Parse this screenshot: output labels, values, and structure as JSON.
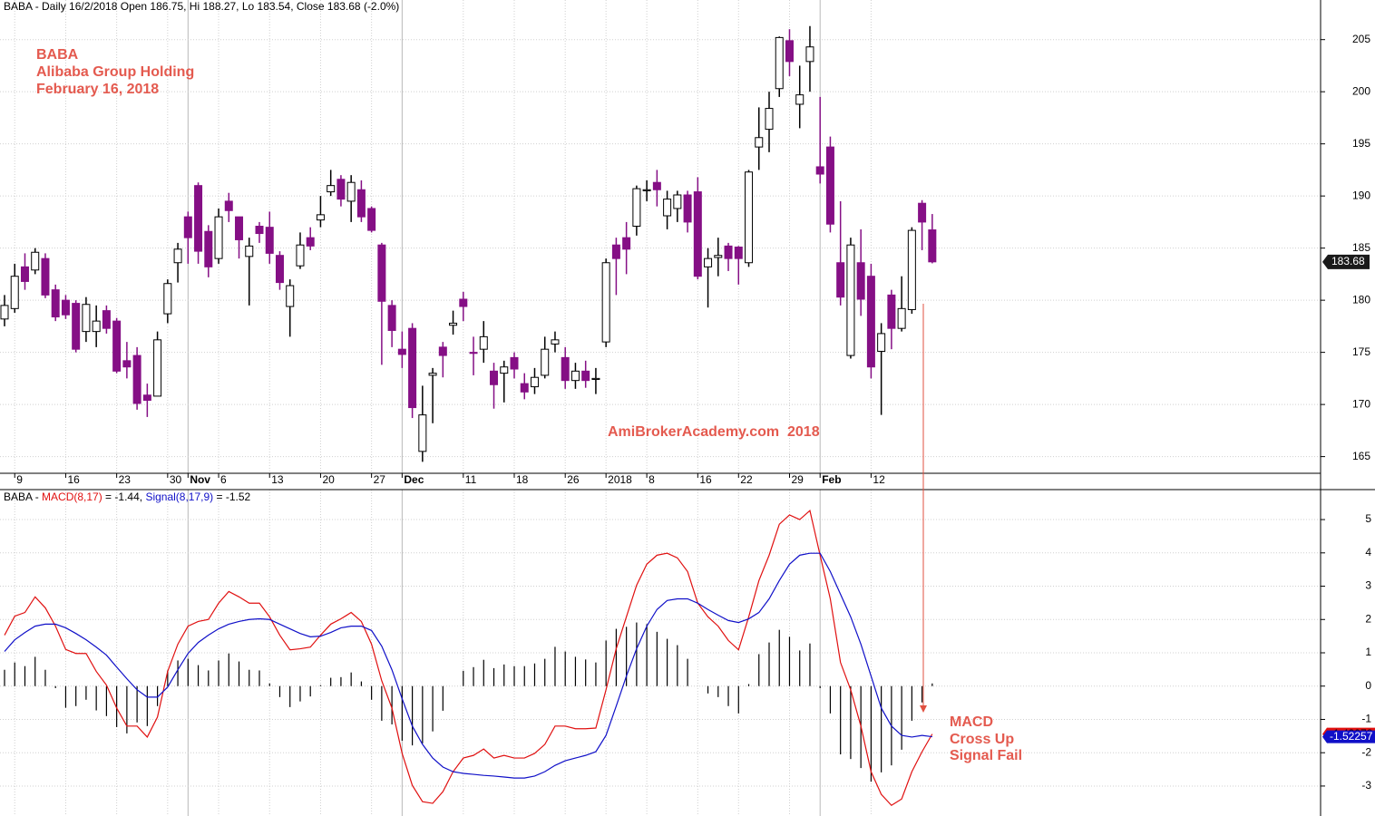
{
  "chart_data": [
    {
      "type": "candlestick",
      "title": "BABA - Daily 16/2/2018 Open 186.75, Hi 188.27, Lo 183.54, Close 183.68 (-2.0%)",
      "annotations": [
        "BABA",
        "Alibaba Group Holding",
        "February 16, 2018"
      ],
      "watermark": "AmiBrokerAcademy.com  2018",
      "categories": [
        null,
        "9",
        null,
        null,
        null,
        null,
        "16",
        null,
        null,
        null,
        null,
        "23",
        null,
        null,
        null,
        null,
        "30",
        null,
        "Nov",
        null,
        null,
        "6",
        null,
        null,
        null,
        null,
        "13",
        null,
        null,
        null,
        null,
        "20",
        null,
        null,
        null,
        null,
        "27",
        null,
        null,
        "Dec",
        null,
        null,
        null,
        null,
        null,
        "11",
        null,
        null,
        null,
        null,
        "18",
        null,
        null,
        null,
        null,
        "26",
        null,
        null,
        null,
        "2018",
        null,
        null,
        null,
        "8",
        null,
        null,
        null,
        null,
        "16",
        null,
        null,
        null,
        "22",
        null,
        null,
        null,
        null,
        "29",
        null,
        null,
        "Feb",
        null,
        null,
        null,
        null,
        "12",
        null,
        null,
        null,
        null,
        null,
        null
      ],
      "open": [
        178.2,
        179.2,
        183.2,
        182.9,
        184,
        181,
        180,
        179.7,
        177,
        177,
        179,
        178,
        174.2,
        174.7,
        170.9,
        170.8,
        178.7,
        183.6,
        188,
        191,
        186.6,
        184,
        189.5,
        188,
        184.2,
        187.1,
        187,
        184.3,
        179.4,
        183.3,
        186,
        187.7,
        190.4,
        191.6,
        189.5,
        190.6,
        188.8,
        185.3,
        179.5,
        175.3,
        177.3,
        165.5,
        172.8,
        175.5,
        177.6,
        180.1,
        175,
        175.3,
        173.2,
        173,
        174.5,
        172,
        171.7,
        172.8,
        175.8,
        174.5,
        172.3,
        173.2,
        172.4,
        176,
        185.3,
        186,
        187.1,
        190.5,
        191.3,
        188.1,
        188.8,
        190.1,
        190.4,
        183.2,
        184.1,
        185.2,
        185.1,
        183.6,
        194.7,
        196.4,
        200.3,
        204.9,
        198.8,
        202.9,
        192.8,
        194.7,
        183.6,
        174.7,
        183.6,
        182.3,
        175.1,
        180.5,
        177.3,
        179.1,
        189.3,
        186.75
      ],
      "high": [
        180.5,
        183.5,
        184.5,
        185,
        184.5,
        181.5,
        180.5,
        180,
        180.3,
        179.5,
        179.5,
        178.3,
        176,
        175.5,
        172,
        177,
        182,
        185.5,
        188.5,
        191.3,
        187.2,
        188.8,
        190.3,
        188,
        186,
        187.5,
        188.5,
        184.7,
        182,
        186.5,
        187,
        190,
        192.5,
        192,
        192,
        191.5,
        189,
        185.5,
        180,
        177,
        177.8,
        171.8,
        173.5,
        176,
        179,
        180.8,
        176.5,
        178,
        174,
        174.2,
        175,
        173,
        173.5,
        176.5,
        177,
        175.5,
        174,
        174.2,
        173.5,
        184,
        186,
        187.5,
        191,
        191.5,
        192.5,
        190.5,
        190.5,
        190.5,
        191.8,
        185,
        186,
        185.5,
        185.2,
        192.5,
        198.5,
        200,
        205.3,
        206,
        202.5,
        206.3,
        199.5,
        195.7,
        189.5,
        186,
        186.8,
        183.5,
        177.8,
        181,
        182.3,
        187,
        189.6,
        188.27
      ],
      "low": [
        177.5,
        178.8,
        181,
        182.5,
        180.2,
        178,
        178.2,
        175,
        176,
        175.5,
        176.8,
        173,
        172.5,
        169.5,
        168.8,
        171,
        177.8,
        181.7,
        183.5,
        183.5,
        182.2,
        183.5,
        187.5,
        184,
        179.5,
        185.5,
        183.5,
        181,
        176.5,
        183,
        184.8,
        187,
        190,
        189,
        187.5,
        187.5,
        186.5,
        173.8,
        175.5,
        173.5,
        168.7,
        164.5,
        168.2,
        172.6,
        176.7,
        178,
        172.8,
        174,
        169.6,
        170.2,
        172.5,
        170.5,
        171,
        172.5,
        175,
        171.5,
        171.5,
        171.6,
        171,
        175.5,
        180.5,
        182.5,
        186.2,
        189.5,
        189,
        186.8,
        187.5,
        186.5,
        182,
        179.3,
        182.3,
        182.8,
        181.5,
        183.2,
        192.5,
        194.2,
        199.5,
        201.5,
        196.5,
        200,
        191.2,
        186.5,
        179.5,
        174.4,
        178.5,
        172.5,
        169,
        175.3,
        177,
        178.7,
        184.8,
        183.54
      ],
      "close": [
        179.5,
        182.3,
        181.8,
        184.6,
        180.5,
        178.4,
        178.6,
        175.3,
        179.6,
        178,
        177.3,
        173.2,
        173.6,
        170.1,
        170.4,
        176.2,
        181.6,
        184.9,
        186,
        184.7,
        183.2,
        188,
        188.6,
        185.8,
        185.2,
        186.4,
        184.5,
        181.7,
        181.4,
        185.3,
        185.2,
        188.2,
        191,
        189.7,
        191.3,
        188,
        186.7,
        179.9,
        177.1,
        174.8,
        169.7,
        169,
        173,
        174.7,
        177.8,
        179.4,
        174.9,
        176.5,
        171.9,
        173.6,
        173.4,
        171.2,
        172.6,
        175.3,
        176.2,
        172.3,
        173.2,
        172.3,
        172.5,
        183.6,
        184,
        184.9,
        190.7,
        190.6,
        190.6,
        189.7,
        190.1,
        187.5,
        182.3,
        184,
        184.3,
        184,
        184,
        192.3,
        195.6,
        198.4,
        205.2,
        202.9,
        199.7,
        204.3,
        192.1,
        187.3,
        180.3,
        185.3,
        180.1,
        173.6,
        176.8,
        177.3,
        179.2,
        186.7,
        187.5,
        183.68
      ],
      "up_color": "#ffffff",
      "down_color": "#850f85",
      "ylim": [
        163.4,
        208.8
      ],
      "yticks": [
        165,
        170,
        175,
        180,
        185,
        190,
        195,
        200,
        205
      ],
      "grid": true
    },
    {
      "type": "macd",
      "legend_text": {
        "prefix": "BABA - ",
        "eq": " = ",
        "sep": ", "
      },
      "annotations": [
        "MACD",
        "Cross Up",
        "Signal Fail"
      ],
      "series": [
        {
          "name": "MACD(8,17)",
          "color": "#e01010",
          "values": [
            1.53,
            2.1,
            2.21,
            2.68,
            2.35,
            1.8,
            1.1,
            0.98,
            0.98,
            0.44,
            0.03,
            -0.66,
            -1.2,
            -1.2,
            -1.53,
            -0.93,
            0.44,
            1.26,
            1.8,
            1.94,
            2.0,
            2.49,
            2.84,
            2.68,
            2.49,
            2.49,
            2.08,
            1.53,
            1.09,
            1.12,
            1.17,
            1.53,
            1.86,
            2.02,
            2.21,
            1.94,
            1.26,
            0.16,
            -0.66,
            -2.02,
            -2.98,
            -3.47,
            -3.52,
            -3.17,
            -2.57,
            -2.16,
            -2.08,
            -1.89,
            -2.16,
            -2.08,
            -2.16,
            -2.16,
            -2.02,
            -1.75,
            -1.2,
            -1.2,
            -1.28,
            -1.28,
            -1.26,
            -0.11,
            1.12,
            2.08,
            3.03,
            3.66,
            3.93,
            3.99,
            3.85,
            3.44,
            2.49,
            2.08,
            1.8,
            1.37,
            1.09,
            2.08,
            3.17,
            3.93,
            4.86,
            5.14,
            5.0,
            5.27,
            3.93,
            2.62,
            0.71,
            -0.11,
            -1.2,
            -2.57,
            -3.25,
            -3.58,
            -3.39,
            -2.57,
            -1.97,
            -1.44
          ]
        },
        {
          "name": "Signal(8,17,9)",
          "color": "#1010c8",
          "values": [
            1.04,
            1.39,
            1.61,
            1.8,
            1.86,
            1.86,
            1.75,
            1.58,
            1.39,
            1.17,
            0.93,
            0.57,
            0.22,
            -0.11,
            -0.33,
            -0.33,
            -0.03,
            0.49,
            0.98,
            1.31,
            1.53,
            1.72,
            1.86,
            1.94,
            2.0,
            2.02,
            2.0,
            1.86,
            1.72,
            1.58,
            1.48,
            1.5,
            1.61,
            1.75,
            1.8,
            1.8,
            1.67,
            1.2,
            0.49,
            -0.38,
            -1.2,
            -1.75,
            -2.16,
            -2.43,
            -2.57,
            -2.62,
            -2.65,
            -2.68,
            -2.7,
            -2.73,
            -2.76,
            -2.76,
            -2.7,
            -2.57,
            -2.38,
            -2.24,
            -2.16,
            -2.08,
            -1.97,
            -1.48,
            -0.6,
            0.3,
            1.12,
            1.8,
            2.3,
            2.57,
            2.62,
            2.62,
            2.49,
            2.3,
            2.13,
            1.97,
            1.91,
            2.02,
            2.21,
            2.62,
            3.17,
            3.66,
            3.93,
            3.99,
            3.99,
            3.44,
            2.76,
            2.08,
            1.26,
            0.3,
            -0.66,
            -1.2,
            -1.48,
            -1.53,
            -1.48,
            -1.52
          ]
        }
      ],
      "histogram": {
        "color": "#000000",
        "values": [
          0.49,
          0.71,
          0.6,
          0.88,
          0.49,
          -0.06,
          -0.65,
          -0.6,
          -0.41,
          -0.73,
          -0.9,
          -1.23,
          -1.42,
          -1.09,
          -1.2,
          -0.6,
          0.47,
          0.77,
          0.82,
          0.63,
          0.47,
          0.77,
          0.98,
          0.74,
          0.49,
          0.47,
          0.08,
          -0.33,
          -0.63,
          -0.46,
          -0.31,
          0.03,
          0.25,
          0.27,
          0.41,
          0.14,
          -0.41,
          -1.04,
          -1.15,
          -1.64,
          -1.78,
          -1.72,
          -1.36,
          -0.74,
          0,
          0.46,
          0.57,
          0.79,
          0.54,
          0.65,
          0.6,
          0.6,
          0.68,
          0.82,
          1.18,
          1.04,
          0.88,
          0.8,
          0.71,
          1.37,
          1.72,
          1.78,
          1.91,
          1.86,
          1.63,
          1.42,
          1.23,
          0.82,
          0,
          -0.22,
          -0.33,
          -0.6,
          -0.82,
          0.06,
          0.96,
          1.31,
          1.69,
          1.48,
          1.07,
          1.28,
          -0.06,
          -0.82,
          -2.05,
          -2.19,
          -2.46,
          -2.87,
          -2.59,
          -2.38,
          -1.91,
          -1.04,
          -0.49,
          0.08
        ]
      },
      "last_labels": {
        "macd": -1.43978,
        "signal": -1.52257
      },
      "ylim": [
        -3.9,
        5.9
      ],
      "yticks": [
        -3,
        -2,
        -1,
        0,
        1,
        2,
        3,
        4,
        5
      ],
      "grid": true
    }
  ]
}
